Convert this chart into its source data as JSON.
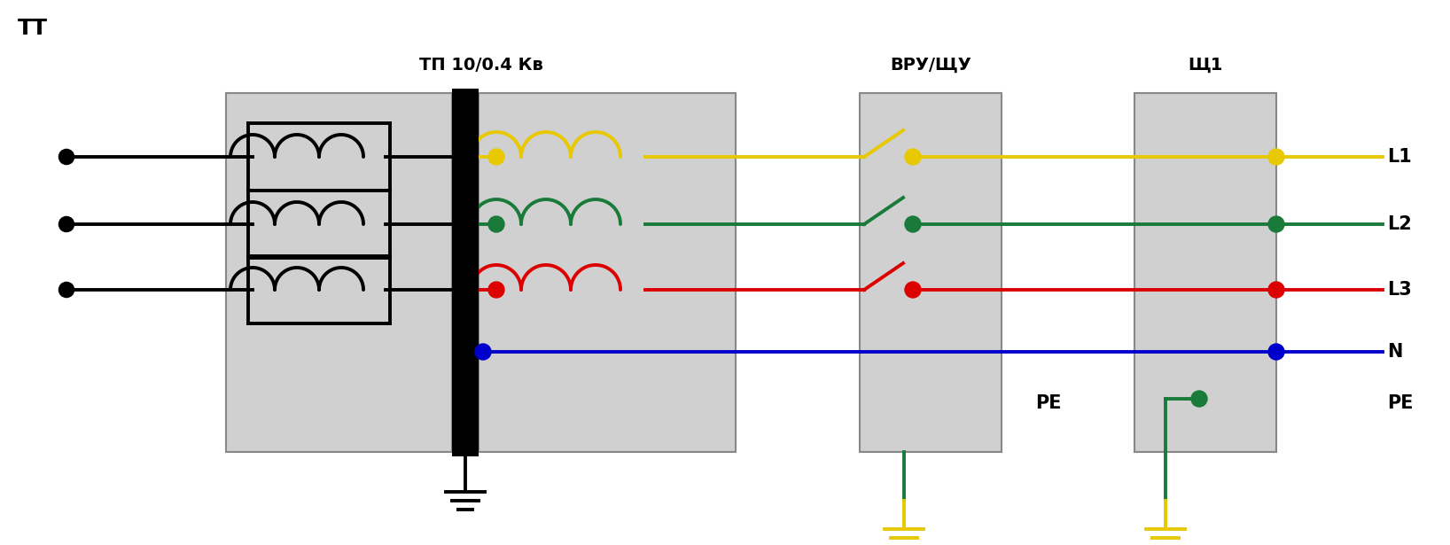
{
  "title_tt": "ТТ",
  "title_tp": "ТП 10/0.4 Кв",
  "title_vru": "ВРУ/ЩУ",
  "title_sch1": "Щ1",
  "label_L1": "L1",
  "label_L2": "L2",
  "label_L3": "L3",
  "label_N": "N",
  "label_PE": "PE",
  "bg_color": "#ffffff",
  "box_color": "#d0d0d0",
  "box_edge": "#888888",
  "wire_yellow": "#e8c800",
  "wire_green": "#1a7a3a",
  "wire_red": "#dd0000",
  "wire_blue": "#0000cc",
  "wire_black": "#000000",
  "ground_yellow": "#e8c800",
  "ground_green": "#1a7a3a"
}
